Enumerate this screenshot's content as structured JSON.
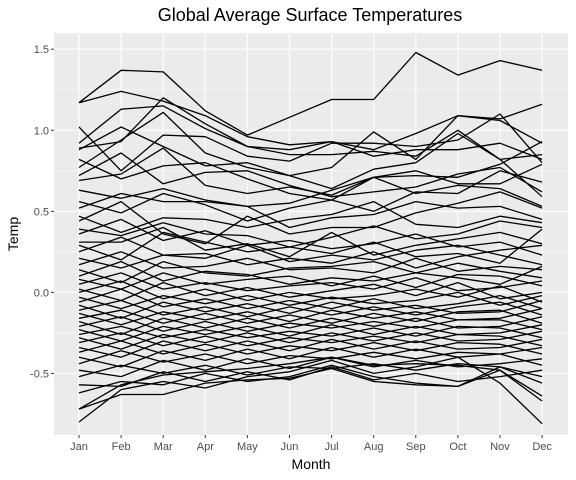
{
  "chart_data": {
    "type": "line",
    "title": "Global Average Surface Temperatures",
    "xlabel": "Month",
    "ylabel": "Temp",
    "categories": [
      "Jan",
      "Feb",
      "Mar",
      "Apr",
      "May",
      "Jun",
      "Jul",
      "Aug",
      "Sep",
      "Oct",
      "Nov",
      "Dec"
    ],
    "ylim": [
      -0.88,
      1.6
    ],
    "yticks": [
      -0.5,
      0.0,
      0.5,
      1.0,
      1.5
    ],
    "ytick_labels": [
      "-0.5",
      "0.0",
      "0.5",
      "1.0",
      "1.5"
    ],
    "grid": true,
    "legend": "none",
    "line_color": "#000000",
    "panel_color": "#ebebeb",
    "series": [
      {
        "values": [
          1.17,
          1.37,
          1.36,
          1.12,
          0.97,
          1.08,
          1.19,
          1.19,
          1.48,
          1.34,
          1.43,
          1.37
        ]
      },
      {
        "values": [
          1.17,
          1.24,
          1.18,
          1.09,
          0.96,
          0.91,
          0.93,
          0.88,
          0.98,
          1.09,
          1.07,
          1.16
        ]
      },
      {
        "values": [
          1.02,
          0.75,
          0.97,
          0.96,
          0.84,
          0.81,
          0.92,
          0.92,
          0.9,
          0.94,
          1.1,
          0.8
        ]
      },
      {
        "values": [
          0.92,
          1.13,
          1.15,
          1.01,
          0.9,
          0.88,
          0.93,
          0.84,
          0.88,
          0.88,
          0.92,
          0.82
        ]
      },
      {
        "values": [
          0.89,
          0.93,
          1.2,
          1.04,
          0.9,
          0.85,
          0.85,
          0.87,
          0.84,
          1.0,
          0.82,
          0.59
        ]
      },
      {
        "values": [
          0.77,
          0.94,
          1.11,
          0.86,
          0.77,
          0.72,
          0.77,
          0.99,
          0.82,
          1.09,
          1.06,
          0.92
        ]
      },
      {
        "values": [
          0.88,
          1.02,
          0.9,
          0.78,
          0.8,
          0.72,
          0.64,
          0.76,
          0.8,
          0.98,
          0.82,
          0.85
        ]
      },
      {
        "values": [
          0.82,
          0.7,
          0.78,
          0.8,
          0.7,
          0.61,
          0.57,
          0.71,
          0.75,
          0.67,
          0.67,
          0.79
        ]
      },
      {
        "values": [
          0.72,
          0.86,
          0.67,
          0.74,
          0.75,
          0.66,
          0.59,
          0.62,
          0.65,
          0.73,
          0.77,
          0.62
        ]
      },
      {
        "values": [
          0.69,
          0.73,
          0.89,
          0.66,
          0.61,
          0.65,
          0.6,
          0.71,
          0.72,
          0.71,
          0.79,
          0.93
        ]
      },
      {
        "values": [
          0.63,
          0.58,
          0.64,
          0.57,
          0.53,
          0.55,
          0.63,
          0.71,
          0.61,
          0.66,
          0.64,
          0.53
        ]
      },
      {
        "values": [
          0.56,
          0.49,
          0.61,
          0.54,
          0.44,
          0.52,
          0.57,
          0.5,
          0.62,
          0.61,
          0.75,
          0.68
        ]
      },
      {
        "values": [
          0.52,
          0.61,
          0.56,
          0.56,
          0.53,
          0.4,
          0.46,
          0.48,
          0.56,
          0.52,
          0.53,
          0.45
        ]
      },
      {
        "values": [
          0.47,
          0.37,
          0.46,
          0.45,
          0.4,
          0.45,
          0.48,
          0.56,
          0.42,
          0.4,
          0.47,
          0.43
        ]
      },
      {
        "values": [
          0.44,
          0.56,
          0.36,
          0.3,
          0.47,
          0.36,
          0.4,
          0.4,
          0.49,
          0.55,
          0.62,
          0.52
        ]
      },
      {
        "values": [
          0.39,
          0.35,
          0.43,
          0.36,
          0.35,
          0.28,
          0.34,
          0.41,
          0.33,
          0.36,
          0.44,
          0.4
        ]
      },
      {
        "values": [
          0.36,
          0.45,
          0.32,
          0.38,
          0.29,
          0.32,
          0.27,
          0.3,
          0.36,
          0.28,
          0.31,
          0.23
        ]
      },
      {
        "values": [
          0.31,
          0.31,
          0.4,
          0.26,
          0.3,
          0.22,
          0.37,
          0.23,
          0.29,
          0.33,
          0.37,
          0.3
        ]
      },
      {
        "values": [
          0.29,
          0.2,
          0.37,
          0.31,
          0.25,
          0.28,
          0.24,
          0.31,
          0.22,
          0.24,
          0.18,
          0.39
        ]
      },
      {
        "values": [
          0.25,
          0.34,
          0.23,
          0.21,
          0.29,
          0.19,
          0.23,
          0.2,
          0.26,
          0.29,
          0.23,
          0.17
        ]
      },
      {
        "values": [
          0.21,
          0.15,
          0.23,
          0.24,
          0.17,
          0.21,
          0.18,
          0.25,
          0.15,
          0.22,
          0.26,
          0.29
        ]
      },
      {
        "values": [
          0.17,
          0.25,
          0.15,
          0.16,
          0.21,
          0.14,
          0.15,
          0.12,
          0.21,
          0.13,
          0.16,
          0.14
        ]
      },
      {
        "values": [
          0.14,
          0.06,
          0.19,
          0.12,
          0.1,
          0.15,
          0.16,
          0.19,
          0.12,
          0.18,
          0.13,
          0.09
        ]
      },
      {
        "values": [
          0.1,
          0.19,
          0.07,
          0.13,
          0.11,
          0.05,
          0.09,
          0.07,
          0.12,
          0.09,
          0.05,
          0.16
        ]
      },
      {
        "values": [
          0.08,
          0.02,
          0.12,
          0.05,
          0.08,
          0.1,
          0.04,
          0.1,
          0.03,
          0.11,
          0.1,
          0.04
        ]
      },
      {
        "values": [
          0.05,
          0.12,
          0.02,
          0.06,
          0.01,
          0.04,
          0.06,
          0.02,
          0.09,
          0.01,
          0.03,
          0.07
        ]
      },
      {
        "values": [
          0.02,
          -0.05,
          0.06,
          -0.02,
          0.03,
          -0.03,
          0.01,
          0.05,
          -0.02,
          0.06,
          -0.04,
          0.0
        ]
      },
      {
        "values": [
          0.0,
          0.07,
          -0.04,
          0.02,
          -0.05,
          0.0,
          -0.04,
          -0.02,
          0.02,
          -0.03,
          0.04,
          -0.06
        ]
      },
      {
        "values": [
          -0.03,
          -0.1,
          -0.02,
          -0.07,
          -0.02,
          -0.08,
          -0.03,
          -0.07,
          -0.05,
          0.0,
          -0.08,
          -0.02
        ]
      },
      {
        "values": [
          -0.06,
          0.02,
          -0.09,
          -0.04,
          -0.1,
          -0.05,
          -0.1,
          -0.04,
          -0.1,
          -0.07,
          -0.02,
          -0.1
        ]
      },
      {
        "values": [
          -0.08,
          -0.16,
          -0.06,
          -0.12,
          -0.07,
          -0.13,
          -0.06,
          -0.11,
          -0.08,
          -0.13,
          -0.12,
          -0.05
        ]
      },
      {
        "values": [
          -0.11,
          -0.05,
          -0.14,
          -0.09,
          -0.15,
          -0.09,
          -0.14,
          -0.09,
          -0.14,
          -0.09,
          -0.06,
          -0.14
        ]
      },
      {
        "values": [
          -0.13,
          -0.2,
          -0.12,
          -0.17,
          -0.12,
          -0.18,
          -0.11,
          -0.16,
          -0.12,
          -0.17,
          -0.16,
          -0.1
        ]
      },
      {
        "values": [
          -0.16,
          -0.11,
          -0.19,
          -0.13,
          -0.19,
          -0.14,
          -0.19,
          -0.13,
          -0.18,
          -0.12,
          -0.11,
          -0.19
        ]
      },
      {
        "values": [
          -0.18,
          -0.26,
          -0.16,
          -0.22,
          -0.16,
          -0.22,
          -0.16,
          -0.21,
          -0.16,
          -0.22,
          -0.21,
          -0.15
        ]
      },
      {
        "values": [
          -0.21,
          -0.15,
          -0.24,
          -0.18,
          -0.24,
          -0.19,
          -0.22,
          -0.18,
          -0.22,
          -0.17,
          -0.17,
          -0.23
        ]
      },
      {
        "values": [
          -0.23,
          -0.3,
          -0.21,
          -0.26,
          -0.21,
          -0.27,
          -0.2,
          -0.26,
          -0.21,
          -0.26,
          -0.25,
          -0.2
        ]
      },
      {
        "values": [
          -0.26,
          -0.21,
          -0.28,
          -0.23,
          -0.28,
          -0.24,
          -0.27,
          -0.22,
          -0.27,
          -0.21,
          -0.22,
          -0.28
        ]
      },
      {
        "values": [
          -0.28,
          -0.35,
          -0.26,
          -0.31,
          -0.25,
          -0.31,
          -0.25,
          -0.3,
          -0.25,
          -0.3,
          -0.29,
          -0.24
        ]
      },
      {
        "values": [
          -0.31,
          -0.25,
          -0.33,
          -0.27,
          -0.33,
          -0.28,
          -0.31,
          -0.27,
          -0.31,
          -0.26,
          -0.27,
          -0.33
        ]
      },
      {
        "values": [
          -0.34,
          -0.4,
          -0.3,
          -0.36,
          -0.3,
          -0.36,
          -0.29,
          -0.35,
          -0.3,
          -0.35,
          -0.34,
          -0.29
        ]
      },
      {
        "values": [
          -0.37,
          -0.3,
          -0.38,
          -0.32,
          -0.38,
          -0.33,
          -0.36,
          -0.31,
          -0.36,
          -0.31,
          -0.32,
          -0.38
        ]
      },
      {
        "values": [
          -0.4,
          -0.46,
          -0.36,
          -0.42,
          -0.35,
          -0.41,
          -0.34,
          -0.4,
          -0.35,
          -0.4,
          -0.38,
          -0.34
        ]
      },
      {
        "values": [
          -0.44,
          -0.36,
          -0.43,
          -0.38,
          -0.44,
          -0.39,
          -0.41,
          -0.37,
          -0.41,
          -0.37,
          -0.38,
          -0.45
        ]
      },
      {
        "values": [
          -0.48,
          -0.52,
          -0.42,
          -0.48,
          -0.41,
          -0.47,
          -0.4,
          -0.46,
          -0.42,
          -0.46,
          -0.44,
          -0.41
        ]
      },
      {
        "values": [
          -0.52,
          -0.45,
          -0.5,
          -0.45,
          -0.51,
          -0.46,
          -0.47,
          -0.44,
          -0.48,
          -0.44,
          -0.46,
          -0.52
        ]
      },
      {
        "values": [
          -0.57,
          -0.58,
          -0.49,
          -0.55,
          -0.49,
          -0.54,
          -0.46,
          -0.54,
          -0.5,
          -0.55,
          -0.52,
          -0.48
        ]
      },
      {
        "values": [
          -0.62,
          -0.55,
          -0.57,
          -0.5,
          -0.55,
          -0.52,
          -0.45,
          -0.52,
          -0.56,
          -0.58,
          -0.46,
          -0.56
        ]
      },
      {
        "values": [
          -0.72,
          -0.57,
          -0.51,
          -0.49,
          -0.47,
          -0.44,
          -0.4,
          -0.45,
          -0.44,
          -0.45,
          -0.48,
          -0.64
        ]
      },
      {
        "values": [
          -0.72,
          -0.63,
          -0.63,
          -0.56,
          -0.54,
          -0.53,
          -0.47,
          -0.55,
          -0.57,
          -0.58,
          -0.48,
          -0.67
        ]
      },
      {
        "values": [
          -0.8,
          -0.6,
          -0.55,
          -0.59,
          -0.52,
          -0.49,
          -0.42,
          -0.5,
          -0.46,
          -0.4,
          -0.56,
          -0.81
        ]
      }
    ]
  }
}
